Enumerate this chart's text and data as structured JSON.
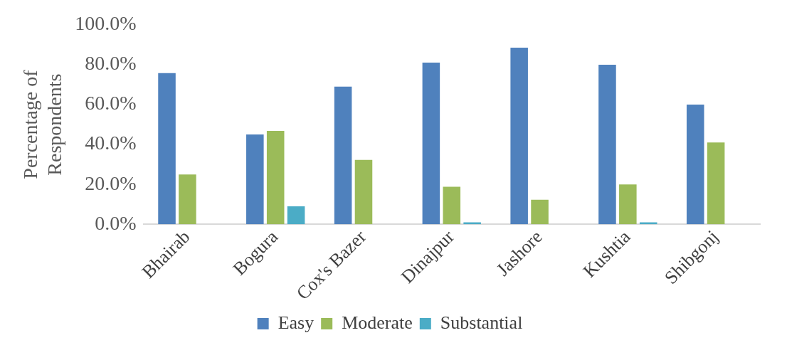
{
  "chart_data": {
    "type": "bar",
    "ylabel": "Percentage of Respondents",
    "categories": [
      "Bhairab",
      "Bogura",
      "Cox's Bazer",
      "Dinajpur",
      "Jashore",
      "Kushtia",
      "Shibgonj"
    ],
    "series": [
      {
        "name": "Easy",
        "color": "#4f81bd",
        "values": [
          75.8,
          45,
          69,
          81,
          88.5,
          80,
          60
        ]
      },
      {
        "name": "Moderate",
        "color": "#9bbb59",
        "values": [
          25,
          46.8,
          32.3,
          18.8,
          12.3,
          20,
          41
        ]
      },
      {
        "name": "Substantial",
        "color": "#4bacc6",
        "values": [
          0,
          9,
          0,
          1,
          0,
          1,
          0
        ]
      }
    ],
    "ylim": [
      0,
      100
    ],
    "yticks": [
      {
        "value": 0,
        "label": "0.0%"
      },
      {
        "value": 20,
        "label": "20.0%"
      },
      {
        "value": 40,
        "label": "40.0%"
      },
      {
        "value": 60,
        "label": "60.0%"
      },
      {
        "value": 80,
        "label": "80.0%"
      },
      {
        "value": 100,
        "label": "100.0%"
      }
    ],
    "grid": false,
    "legend": "bottom"
  }
}
